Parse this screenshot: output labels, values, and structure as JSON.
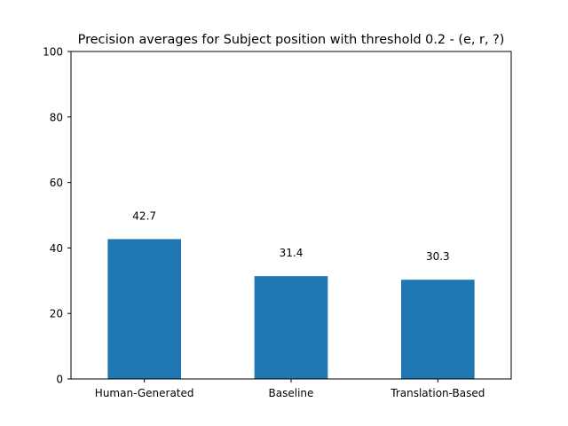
{
  "chart_data": {
    "type": "bar",
    "title": "Precision averages for Subject position with threshold 0.2 - (e, r, ?)",
    "xlabel": "",
    "ylabel": "",
    "categories": [
      "Human-Generated",
      "Baseline",
      "Translation-Based"
    ],
    "values": [
      42.7,
      31.4,
      30.3
    ],
    "value_labels": [
      "42.7",
      "31.4",
      "30.3"
    ],
    "ylim": [
      0,
      100
    ],
    "yticks": [
      0,
      20,
      40,
      60,
      80,
      100
    ],
    "ytick_labels": [
      "0",
      "20",
      "40",
      "60",
      "80",
      "100"
    ],
    "grid": false,
    "legend": "none",
    "bar_color": "#1f77b4"
  }
}
